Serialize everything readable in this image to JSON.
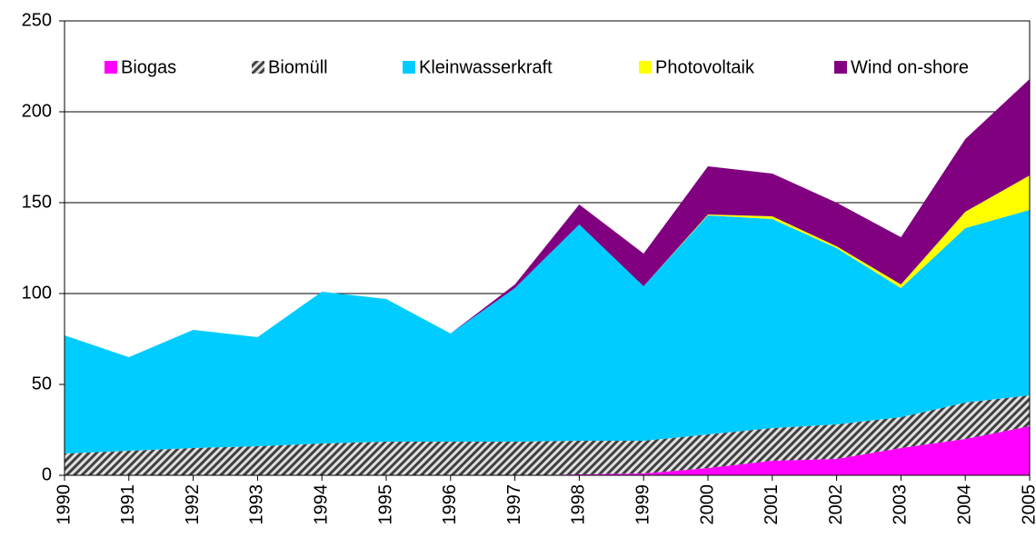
{
  "chart_data": {
    "type": "stacked_area",
    "categories": [
      "1990",
      "1991",
      "1992",
      "1993",
      "1994",
      "1995",
      "1996",
      "1997",
      "1998",
      "1999",
      "2000",
      "2001",
      "2002",
      "2003",
      "2004",
      "2005"
    ],
    "series": [
      {
        "name": "Biogas",
        "color": "#ff00ff",
        "values": [
          0,
          0,
          0,
          0,
          0,
          0,
          0,
          0,
          0.5,
          1,
          4,
          8,
          9,
          15,
          20,
          27
        ]
      },
      {
        "name": "Biomüll",
        "color": "#808080",
        "hatch": true,
        "values": [
          12,
          13.5,
          15,
          16,
          17.5,
          18.5,
          18.5,
          18.5,
          18.5,
          18,
          18.5,
          18,
          19,
          17,
          20,
          17
        ]
      },
      {
        "name": "Kleinwasserkraft",
        "color": "#00ccff",
        "values": [
          65,
          51.5,
          65,
          60,
          83.5,
          78.5,
          59.5,
          84.5,
          119,
          85,
          120.5,
          115,
          97,
          71,
          96,
          102
        ]
      },
      {
        "name": "Photovoltaik",
        "color": "#ffff00",
        "values": [
          0,
          0,
          0,
          0,
          0,
          0,
          0,
          0,
          0,
          0,
          0.5,
          1.5,
          1,
          2,
          9,
          19
        ]
      },
      {
        "name": "Wind on-shore",
        "color": "#800080",
        "values": [
          0,
          0,
          0,
          0,
          0,
          0,
          0,
          2,
          11,
          18,
          26.5,
          23.5,
          24,
          26,
          40,
          53
        ]
      }
    ],
    "ylim": [
      0,
      250
    ],
    "yticks": [
      0,
      50,
      100,
      150,
      200,
      250
    ],
    "grid": true
  }
}
